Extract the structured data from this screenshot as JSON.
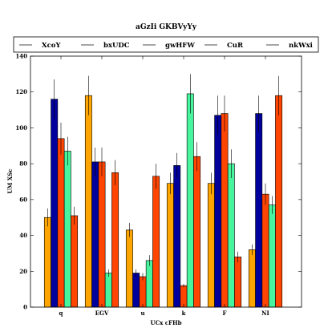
{
  "chart_data": {
    "type": "bar",
    "title": "aGzIi GKBVyYy",
    "xlabel": "UCx cFHb",
    "ylabel": "UM XSc",
    "categories": [
      "q",
      "EGV",
      "u",
      "k",
      "F",
      "NI"
    ],
    "ylim": [
      0,
      140
    ],
    "yticks": [
      0,
      20,
      40,
      60,
      80,
      100,
      120,
      140
    ],
    "legend_position": "top (above plot, horizontal)",
    "grid": false,
    "error_bars": true,
    "series": [
      {
        "name": "XcoY",
        "color": "#FFA500",
        "values": [
          50,
          118,
          43,
          69,
          69,
          32
        ],
        "errors": [
          5,
          11,
          4,
          6,
          6,
          3
        ]
      },
      {
        "name": "bxUDC",
        "color": "#00009C",
        "values": [
          116,
          81,
          19,
          79,
          107,
          108
        ],
        "errors": [
          11,
          8,
          2,
          7,
          11,
          10
        ]
      },
      {
        "name": "gwHFW",
        "color": "#FF4500",
        "values": [
          94,
          81,
          17,
          12,
          108,
          63
        ],
        "errors": [
          9,
          8,
          2,
          1,
          10,
          6
        ]
      },
      {
        "name": "CuR",
        "color": "#48F59F",
        "values": [
          87,
          19,
          26,
          119,
          80,
          57
        ],
        "errors": [
          8,
          2,
          3,
          11,
          8,
          5
        ]
      },
      {
        "name": "nkWxi",
        "color": "#FF4500",
        "values": [
          51,
          75,
          73,
          84,
          28,
          118
        ],
        "errors": [
          5,
          7,
          7,
          8,
          3,
          11
        ]
      }
    ]
  }
}
